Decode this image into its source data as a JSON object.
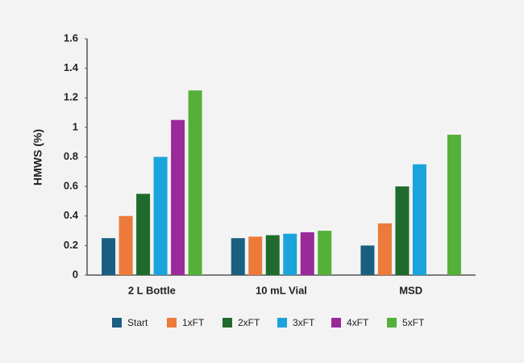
{
  "chart_data": {
    "type": "bar",
    "y_label": "HMWS (%)",
    "categories": [
      "2 L Bottle",
      "10 mL Vial",
      "MSD"
    ],
    "series": [
      {
        "name": "Start",
        "color": "#1a5f80",
        "values": [
          0.25,
          0.25,
          0.2
        ]
      },
      {
        "name": "1xFT",
        "color": "#ec7a3a",
        "values": [
          0.4,
          0.26,
          0.35
        ]
      },
      {
        "name": "2xFT",
        "color": "#1f6b2d",
        "values": [
          0.55,
          0.27,
          0.6
        ]
      },
      {
        "name": "3xFT",
        "color": "#1ba3dc",
        "values": [
          0.8,
          0.28,
          0.75
        ]
      },
      {
        "name": "4xFT",
        "color": "#9a2a9a",
        "values": [
          1.05,
          0.29,
          null
        ]
      },
      {
        "name": "5xFT",
        "color": "#55b03a",
        "values": [
          1.25,
          0.3,
          0.95
        ]
      }
    ],
    "ylim": [
      0,
      1.6
    ],
    "yticks": [
      0,
      0.2,
      0.4,
      0.6,
      0.8,
      1,
      1.2,
      1.4,
      1.6
    ],
    "grid": false,
    "legend": "bottom"
  }
}
